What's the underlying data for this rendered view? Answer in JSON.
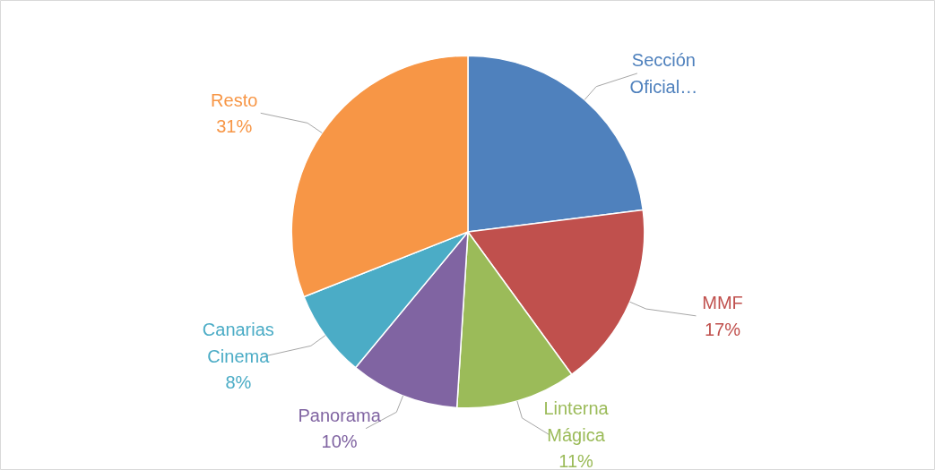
{
  "chart_data": {
    "type": "pie",
    "categories": [
      "Sección Oficial…",
      "MMF",
      "Linterna Mágica",
      "Panorama",
      "Canarias Cinema",
      "Resto"
    ],
    "values": [
      23,
      17,
      11,
      10,
      8,
      31
    ],
    "colors": [
      "#4f81bd",
      "#c0504d",
      "#9bbb59",
      "#8064a2",
      "#4bacc6",
      "#f79646"
    ],
    "value_labels": [
      null,
      "17%",
      "11%",
      "10%",
      "8%",
      "31%"
    ],
    "legend": false
  }
}
